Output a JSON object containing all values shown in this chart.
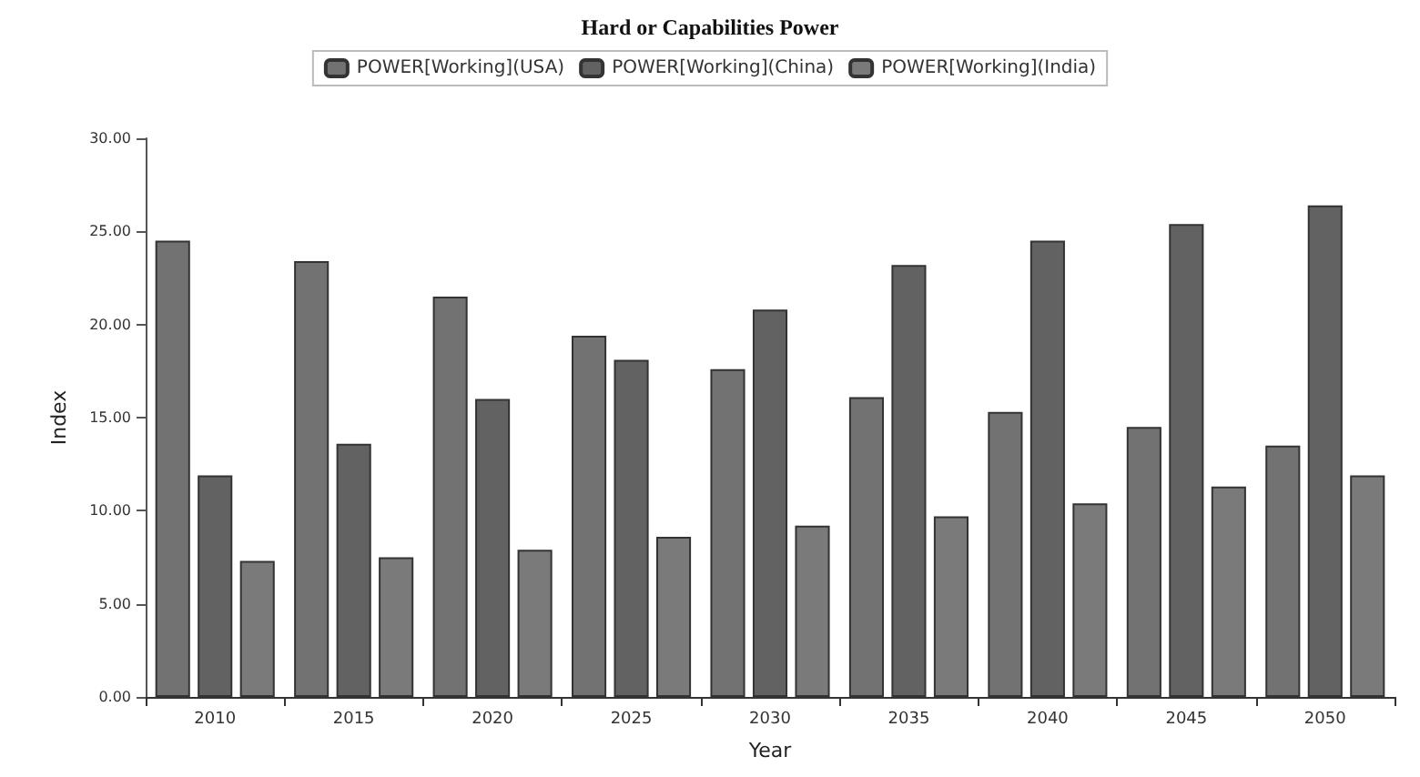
{
  "chart_data": {
    "type": "bar",
    "title": "Hard or Capabilities Power",
    "xlabel": "Year",
    "ylabel": "Index",
    "categories": [
      "2010",
      "2015",
      "2020",
      "2025",
      "2030",
      "2035",
      "2040",
      "2045",
      "2050"
    ],
    "series": [
      {
        "name": "POWER[Working](USA)",
        "color": "#727272",
        "values": [
          24.5,
          23.4,
          21.5,
          19.4,
          17.6,
          16.1,
          15.3,
          14.5,
          13.5
        ]
      },
      {
        "name": "POWER[Working](China)",
        "color": "#626262",
        "values": [
          11.9,
          13.6,
          16.0,
          18.1,
          20.8,
          23.2,
          24.5,
          25.4,
          26.4
        ]
      },
      {
        "name": "POWER[Working](India)",
        "color": "#7a7a7a",
        "values": [
          7.3,
          7.5,
          7.9,
          8.6,
          9.2,
          9.7,
          10.4,
          11.3,
          11.9
        ]
      }
    ],
    "ylim": [
      0,
      30
    ],
    "yticks": [
      {
        "value": 0,
        "label": "0.00"
      },
      {
        "value": 5,
        "label": "5.00"
      },
      {
        "value": 10,
        "label": "10.00"
      },
      {
        "value": 15,
        "label": "15.00"
      },
      {
        "value": 20,
        "label": "20.00"
      },
      {
        "value": 25,
        "label": "25.00"
      },
      {
        "value": 30,
        "label": "30.00"
      }
    ],
    "legend": "top",
    "grid": false
  }
}
